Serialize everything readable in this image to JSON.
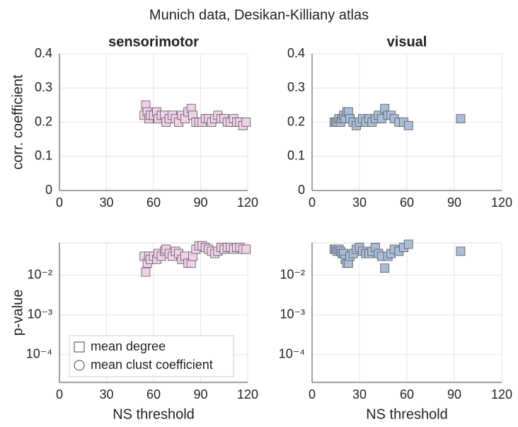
{
  "title": "Munich data, Desikan-Killiany atlas",
  "chart_data": [
    {
      "type": "scatter",
      "title": "sensorimotor",
      "ylabel": "corr. coefficient",
      "marker": "square",
      "color": "#f0d0ea",
      "x": [
        54,
        55,
        56,
        57,
        58,
        60,
        62,
        63,
        65,
        67,
        68,
        70,
        72,
        74,
        76,
        78,
        80,
        82,
        84,
        85,
        87,
        89,
        91,
        93,
        95,
        97,
        99,
        101,
        103,
        105,
        107,
        109,
        111,
        113,
        115,
        117,
        119
      ],
      "values": [
        0.22,
        0.25,
        0.23,
        0.21,
        0.22,
        0.22,
        0.23,
        0.21,
        0.22,
        0.22,
        0.2,
        0.21,
        0.22,
        0.21,
        0.2,
        0.22,
        0.21,
        0.23,
        0.24,
        0.22,
        0.2,
        0.2,
        0.2,
        0.21,
        0.21,
        0.2,
        0.21,
        0.22,
        0.21,
        0.21,
        0.2,
        0.2,
        0.21,
        0.2,
        0.2,
        0.19,
        0.2
      ],
      "xlim": [
        0,
        120
      ],
      "xticks": [
        0,
        30,
        60,
        90,
        120
      ],
      "ylim": [
        0,
        0.4
      ],
      "yticks": [
        0,
        0.1,
        0.2,
        0.3,
        0.4
      ],
      "grid": true,
      "log": false
    },
    {
      "type": "scatter",
      "title": "visual",
      "marker": "square",
      "color": "#a9bdd9",
      "x": [
        14,
        15,
        16,
        17,
        18,
        19,
        20,
        21,
        22,
        23,
        24,
        26,
        28,
        30,
        32,
        34,
        36,
        38,
        40,
        42,
        44,
        46,
        48,
        50,
        52,
        55,
        58,
        61,
        94
      ],
      "values": [
        0.2,
        0.2,
        0.2,
        0.21,
        0.2,
        0.21,
        0.22,
        0.21,
        0.23,
        0.23,
        0.21,
        0.2,
        0.19,
        0.2,
        0.21,
        0.2,
        0.21,
        0.2,
        0.21,
        0.22,
        0.21,
        0.24,
        0.22,
        0.22,
        0.21,
        0.2,
        0.2,
        0.19,
        0.21
      ],
      "xlim": [
        0,
        120
      ],
      "xticks": [
        0,
        30,
        60,
        90,
        120
      ],
      "ylim": [
        0,
        0.4
      ],
      "yticks": [
        0,
        0.1,
        0.2,
        0.3,
        0.4
      ],
      "grid": true,
      "log": false
    },
    {
      "type": "scatter",
      "ylabel": "p-value",
      "xlabel": "NS threshold",
      "marker": "square",
      "color": "#f0d0ea",
      "x": [
        54,
        55,
        56,
        57,
        58,
        60,
        62,
        63,
        65,
        67,
        68,
        70,
        72,
        74,
        76,
        78,
        80,
        82,
        84,
        85,
        87,
        89,
        91,
        93,
        95,
        97,
        99,
        101,
        103,
        105,
        107,
        109,
        111,
        113,
        115,
        117,
        119
      ],
      "values": [
        0.03,
        0.012,
        0.02,
        0.03,
        0.025,
        0.03,
        0.025,
        0.035,
        0.03,
        0.04,
        0.045,
        0.035,
        0.03,
        0.04,
        0.035,
        0.025,
        0.03,
        0.02,
        0.02,
        0.03,
        0.045,
        0.055,
        0.055,
        0.05,
        0.045,
        0.04,
        0.035,
        0.04,
        0.05,
        0.045,
        0.05,
        0.05,
        0.045,
        0.05,
        0.05,
        0.045,
        0.045
      ],
      "xlim": [
        0,
        120
      ],
      "xticks": [
        0,
        30,
        60,
        90,
        120
      ],
      "ylim": [
        2e-05,
        0.065
      ],
      "yticks": [
        {
          "value": 0.0001,
          "label": "10⁻⁴"
        },
        {
          "value": 0.001,
          "label": "10⁻³"
        },
        {
          "value": 0.01,
          "label": "10⁻²"
        }
      ],
      "grid": true,
      "log": true,
      "legend": [
        {
          "label": "mean degree",
          "marker": "square"
        },
        {
          "label": "mean clust coefficient",
          "marker": "circle"
        }
      ]
    },
    {
      "type": "scatter",
      "xlabel": "NS threshold",
      "marker": "square",
      "color": "#a9bdd9",
      "x": [
        14,
        15,
        16,
        17,
        18,
        19,
        20,
        21,
        22,
        23,
        24,
        26,
        28,
        30,
        32,
        34,
        36,
        38,
        40,
        42,
        44,
        46,
        48,
        50,
        52,
        55,
        58,
        61,
        94
      ],
      "values": [
        0.045,
        0.045,
        0.04,
        0.045,
        0.04,
        0.035,
        0.035,
        0.025,
        0.02,
        0.02,
        0.03,
        0.035,
        0.045,
        0.05,
        0.04,
        0.035,
        0.035,
        0.04,
        0.05,
        0.035,
        0.03,
        0.015,
        0.03,
        0.035,
        0.045,
        0.04,
        0.05,
        0.06,
        0.04
      ],
      "xlim": [
        0,
        120
      ],
      "xticks": [
        0,
        30,
        60,
        90,
        120
      ],
      "ylim": [
        2e-05,
        0.065
      ],
      "yticks": [
        {
          "value": 0.0001,
          "label": "10⁻⁴"
        },
        {
          "value": 0.001,
          "label": "10⁻³"
        },
        {
          "value": 0.01,
          "label": "10⁻²"
        }
      ],
      "grid": true,
      "log": true
    }
  ]
}
